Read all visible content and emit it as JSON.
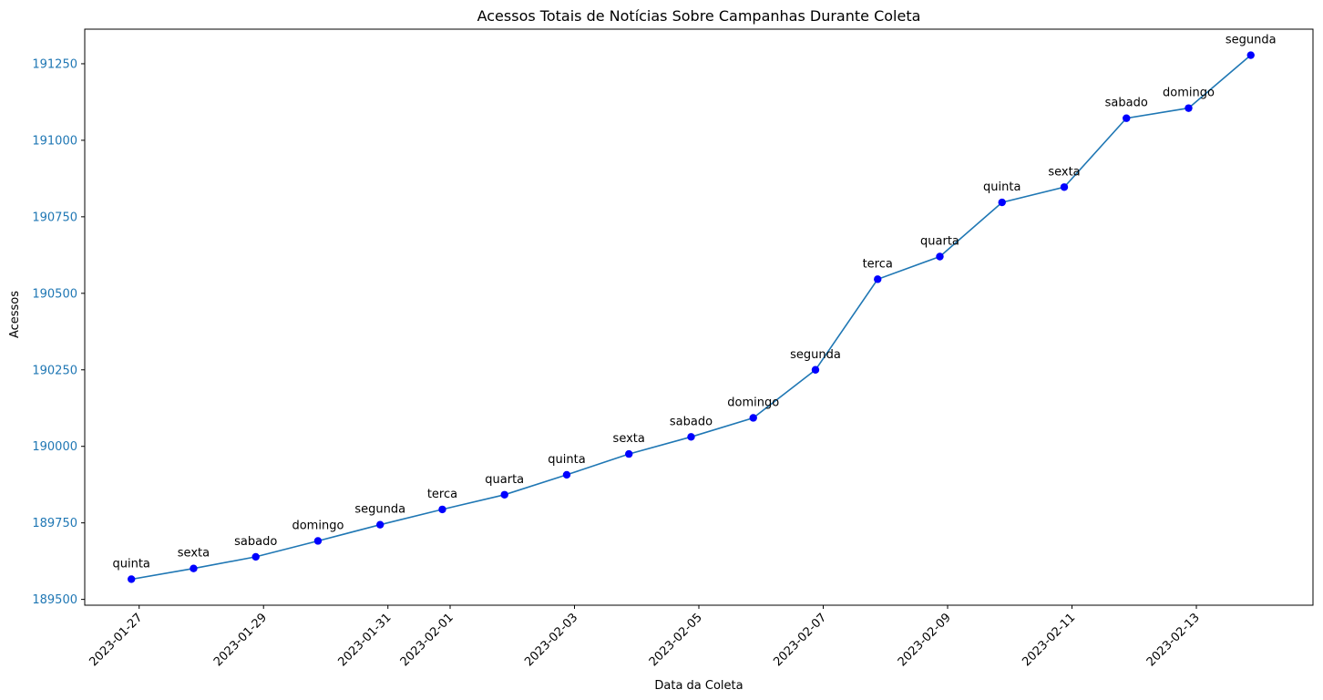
{
  "chart_data": {
    "type": "line",
    "title": "Acessos Totais de Notícias Sobre Campanhas Durante Coleta",
    "xlabel": "Data da Coleta",
    "ylabel": "Acessos",
    "x_ticks": [
      "2023-01-27",
      "2023-01-29",
      "2023-01-31",
      "2023-02-01",
      "2023-02-03",
      "2023-02-05",
      "2023-02-07",
      "2023-02-09",
      "2023-02-11",
      "2023-02-13"
    ],
    "y_ticks": [
      189500,
      189750,
      190000,
      190250,
      190500,
      190750,
      191000,
      191250
    ],
    "xlim": [
      "2023-01-26 03:00",
      "2023-02-14 21:00"
    ],
    "ylim": [
      189481,
      191363
    ],
    "grid": false,
    "series": [
      {
        "line_color": "#1f77b4",
        "marker_color": "#0000ff",
        "points": [
          {
            "x": "2023-01-26 21:00",
            "y": 189566,
            "label": "quinta"
          },
          {
            "x": "2023-01-27 21:00",
            "y": 189601,
            "label": "sexta"
          },
          {
            "x": "2023-01-28 21:00",
            "y": 189639,
            "label": "sabado"
          },
          {
            "x": "2023-01-29 21:00",
            "y": 189691,
            "label": "domingo"
          },
          {
            "x": "2023-01-30 21:00",
            "y": 189744,
            "label": "segunda"
          },
          {
            "x": "2023-01-31 21:00",
            "y": 189794,
            "label": "terca"
          },
          {
            "x": "2023-02-01 21:00",
            "y": 189842,
            "label": "quarta"
          },
          {
            "x": "2023-02-02 21:00",
            "y": 189907,
            "label": "quinta"
          },
          {
            "x": "2023-02-03 21:00",
            "y": 189975,
            "label": "sexta"
          },
          {
            "x": "2023-02-04 21:00",
            "y": 190031,
            "label": "sabado"
          },
          {
            "x": "2023-02-05 21:00",
            "y": 190093,
            "label": "domingo"
          },
          {
            "x": "2023-02-06 21:00",
            "y": 190250,
            "label": "segunda"
          },
          {
            "x": "2023-02-07 21:00",
            "y": 190546,
            "label": "terca"
          },
          {
            "x": "2023-02-08 21:00",
            "y": 190620,
            "label": "quarta"
          },
          {
            "x": "2023-02-09 21:00",
            "y": 190797,
            "label": "quinta"
          },
          {
            "x": "2023-02-10 21:00",
            "y": 190847,
            "label": "sexta"
          },
          {
            "x": "2023-02-11 21:00",
            "y": 191072,
            "label": "sabado"
          },
          {
            "x": "2023-02-12 21:00",
            "y": 191105,
            "label": "domingo"
          },
          {
            "x": "2023-02-13 21:00",
            "y": 191278,
            "label": "segunda"
          }
        ]
      }
    ],
    "ytick_color": "#1f77b4"
  }
}
